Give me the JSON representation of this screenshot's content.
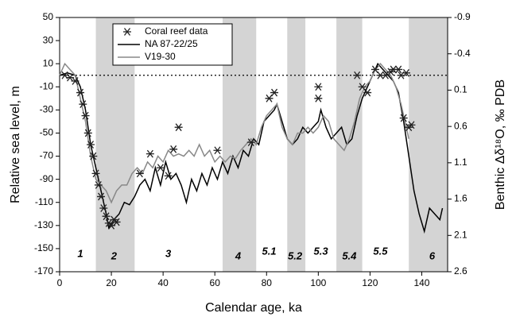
{
  "chart_data": {
    "type": "line",
    "xlabel": "Calendar age, ka",
    "ylabel": "Relative sea level, m",
    "y2label": "Benthic Δδ¹⁸O, ‰ PDB",
    "xlim": [
      0,
      150
    ],
    "xticks": [
      0,
      20,
      40,
      60,
      80,
      100,
      120,
      140
    ],
    "ylim": [
      -170,
      50
    ],
    "yticks": [
      50,
      30,
      10,
      -10,
      -30,
      -50,
      -70,
      -90,
      -110,
      -130,
      -150,
      -170
    ],
    "y2lim": [
      2.6,
      -0.9
    ],
    "y2ticks": [
      -0.9,
      -0.4,
      0.1,
      0.6,
      1.1,
      1.6,
      2.1,
      2.6
    ],
    "reference_line": 0,
    "shaded_periods": [
      [
        14,
        29
      ],
      [
        63,
        76
      ],
      [
        88,
        95
      ],
      [
        107,
        117
      ],
      [
        135,
        150
      ]
    ],
    "annotations": [
      {
        "text": "1",
        "x": 8,
        "y": -155
      },
      {
        "text": "2",
        "x": 21,
        "y": -157
      },
      {
        "text": "3",
        "x": 42,
        "y": -155
      },
      {
        "text": "4",
        "x": 69,
        "y": -157
      },
      {
        "text": "5.1",
        "x": 81,
        "y": -153
      },
      {
        "text": "5.2",
        "x": 91,
        "y": -157
      },
      {
        "text": "5.3",
        "x": 101,
        "y": -153
      },
      {
        "text": "5.4",
        "x": 112,
        "y": -157
      },
      {
        "text": "5.5",
        "x": 124,
        "y": -153
      },
      {
        "text": "6",
        "x": 144,
        "y": -157
      }
    ],
    "series": [
      {
        "name": "Coral reef data",
        "kind": "scatter",
        "color": "#222",
        "x": [
          2,
          4,
          6,
          8,
          9,
          10,
          11,
          12,
          13,
          14,
          15,
          16,
          17,
          18,
          19,
          20,
          21,
          22,
          31,
          35,
          39,
          42,
          44,
          46,
          61,
          74,
          81,
          83,
          100,
          100,
          115,
          117,
          119,
          122,
          124,
          126,
          128,
          129,
          131,
          132,
          133,
          134,
          135,
          136
        ],
        "values": [
          0,
          -2,
          -5,
          -15,
          -25,
          -35,
          -50,
          -60,
          -70,
          -85,
          -95,
          -105,
          -115,
          -122,
          -128,
          -130,
          -125,
          -127,
          -85,
          -68,
          -80,
          -87,
          -64,
          -45,
          -65,
          -58,
          -20,
          -15,
          -10,
          -20,
          0,
          -10,
          -15,
          5,
          0,
          0,
          3,
          5,
          5,
          0,
          -37,
          2,
          -45,
          -43
        ]
      },
      {
        "name": "NA 87-22/25",
        "kind": "line",
        "color": "#000",
        "x": [
          0,
          3,
          6,
          8,
          10,
          12,
          14,
          16,
          18,
          19,
          21,
          23,
          25,
          27,
          29,
          31,
          33,
          35,
          37,
          39,
          41,
          43,
          45,
          47,
          49,
          51,
          53,
          55,
          57,
          59,
          61,
          63,
          65,
          67,
          69,
          71,
          73,
          75,
          77,
          79,
          81,
          83,
          84,
          86,
          88,
          90,
          92,
          94,
          96,
          98,
          100,
          101,
          103,
          105,
          107,
          109,
          111,
          113,
          115,
          117,
          119,
          121,
          123,
          125,
          127,
          129,
          131,
          133,
          135,
          137,
          139,
          141,
          143,
          145,
          147,
          148
        ],
        "values": [
          0,
          2,
          0,
          -10,
          -30,
          -60,
          -80,
          -100,
          -120,
          -132,
          -125,
          -120,
          -110,
          -112,
          -105,
          -95,
          -90,
          -100,
          -80,
          -95,
          -75,
          -90,
          -85,
          -95,
          -110,
          -90,
          -100,
          -85,
          -95,
          -80,
          -90,
          -75,
          -85,
          -70,
          -80,
          -65,
          -70,
          -55,
          -60,
          -40,
          -35,
          -30,
          -25,
          -40,
          -55,
          -60,
          -55,
          -45,
          -50,
          -45,
          -40,
          -30,
          -45,
          -55,
          -50,
          -45,
          -60,
          -55,
          -35,
          -20,
          -10,
          0,
          10,
          5,
          0,
          -5,
          -15,
          -40,
          -70,
          -100,
          -120,
          -135,
          -115,
          -120,
          -125,
          -115
        ]
      },
      {
        "name": "V19-30",
        "kind": "line",
        "color": "#888",
        "x": [
          0,
          2,
          4,
          6,
          8,
          10,
          12,
          14,
          16,
          18,
          20,
          22,
          24,
          26,
          28,
          30,
          32,
          34,
          36,
          38,
          40,
          42,
          44,
          46,
          48,
          50,
          52,
          54,
          56,
          58,
          60,
          62,
          64,
          66,
          68,
          70,
          72,
          74,
          76,
          78,
          80,
          82,
          84,
          86,
          88,
          90,
          92,
          94,
          96,
          98,
          100,
          102,
          104,
          106,
          108,
          110,
          112,
          114,
          116,
          118,
          120,
          122,
          124,
          126,
          128,
          130,
          132,
          134,
          135
        ],
        "values": [
          0,
          10,
          5,
          0,
          -20,
          -40,
          -70,
          -90,
          -95,
          -100,
          -110,
          -100,
          -95,
          -95,
          -85,
          -80,
          -85,
          -75,
          -80,
          -70,
          -75,
          -65,
          -70,
          -68,
          -70,
          -65,
          -70,
          -60,
          -70,
          -65,
          -75,
          -70,
          -75,
          -70,
          -72,
          -65,
          -60,
          -55,
          -60,
          -45,
          -35,
          -30,
          -25,
          -45,
          -55,
          -60,
          -50,
          -50,
          -45,
          -50,
          -45,
          -35,
          -40,
          -55,
          -60,
          -65,
          -55,
          -40,
          -20,
          -10,
          -5,
          5,
          10,
          5,
          0,
          -10,
          -25,
          -45,
          -55
        ]
      }
    ]
  }
}
